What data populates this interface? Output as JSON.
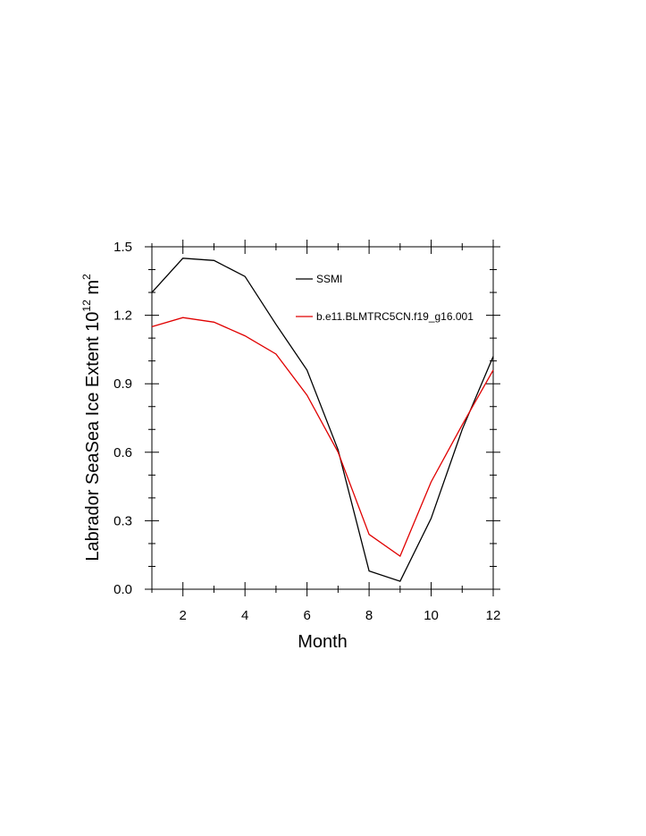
{
  "chart_data": {
    "type": "line",
    "title": "",
    "xlabel": "Month",
    "ylabel": {
      "main": "Labrador SeaSea Ice Extent 10",
      "sup1": "12",
      "unit": " m",
      "sup2": "2"
    },
    "xlim": [
      1,
      12
    ],
    "ylim": [
      0.0,
      1.5
    ],
    "xticks": [
      2,
      4,
      6,
      8,
      10,
      12
    ],
    "yticks": [
      "0.0",
      "0.3",
      "0.6",
      "0.9",
      "1.2",
      "1.5"
    ],
    "grid": false,
    "legend_position": "top-right",
    "x": [
      1,
      2,
      3,
      4,
      5,
      6,
      7,
      8,
      9,
      10,
      11,
      12
    ],
    "series": [
      {
        "name": "SSMI",
        "color": "#000000",
        "values": [
          1.3,
          1.45,
          1.44,
          1.37,
          1.16,
          0.96,
          0.61,
          0.08,
          0.035,
          0.31,
          0.7,
          1.02
        ]
      },
      {
        "name": "b.e11.BLMTRC5CN.f19_g16.001",
        "color": "#e00000",
        "values": [
          1.15,
          1.19,
          1.17,
          1.11,
          1.03,
          0.85,
          0.6,
          0.24,
          0.145,
          0.47,
          0.72,
          0.96
        ]
      }
    ]
  }
}
